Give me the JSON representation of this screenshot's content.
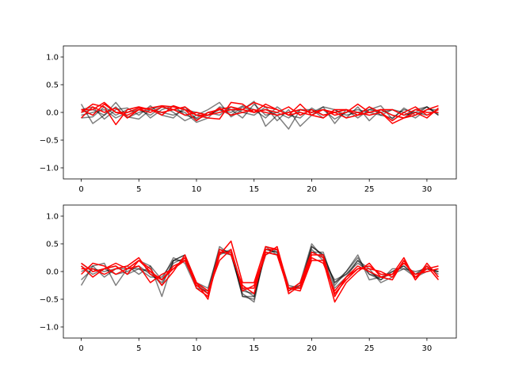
{
  "colors": {
    "gray_series": "#000000",
    "red_series": "#ff0000",
    "axes": "#000000",
    "background": "#ffffff"
  },
  "chart_data": [
    {
      "type": "line",
      "title": "",
      "xlabel": "",
      "ylabel": "",
      "xlim": [
        -1.55,
        32.55
      ],
      "ylim": [
        -1.2,
        1.2
      ],
      "xticks": [
        0,
        5,
        10,
        15,
        20,
        25,
        30
      ],
      "yticks": [
        -1.0,
        -0.5,
        0.0,
        0.5,
        1.0
      ],
      "ytick_labels": [
        "−1.0",
        "−0.5",
        "0.0",
        "0.5",
        "1.0"
      ],
      "x": [
        0,
        1,
        2,
        3,
        4,
        5,
        6,
        7,
        8,
        9,
        10,
        11,
        12,
        13,
        14,
        15,
        16,
        17,
        18,
        19,
        20,
        21,
        22,
        23,
        24,
        25,
        26,
        27,
        28,
        29,
        30,
        31
      ],
      "grid": false,
      "series": [
        {
          "color": "gray",
          "values": [
            0.15,
            -0.2,
            -0.05,
            0.18,
            -0.08,
            -0.12,
            0.05,
            0.12,
            0.0,
            -0.15,
            -0.05,
            0.05,
            0.18,
            -0.08,
            0.05,
            0.2,
            -0.25,
            -0.05,
            -0.3,
            0.05,
            0.0,
            0.1,
            -0.2,
            0.05,
            -0.1,
            0.05,
            0.12,
            -0.12,
            0.08,
            -0.05,
            0.1,
            -0.02
          ]
        },
        {
          "color": "gray",
          "values": [
            -0.1,
            -0.08,
            0.1,
            -0.05,
            0.05,
            0.1,
            -0.1,
            0.05,
            0.12,
            -0.05,
            -0.1,
            0.0,
            -0.05,
            0.1,
            0.0,
            -0.05,
            0.1,
            -0.15,
            0.05,
            -0.25,
            -0.05,
            0.1,
            0.05,
            -0.1,
            0.1,
            -0.15,
            0.05,
            -0.05,
            -0.1,
            0.05,
            0.1,
            -0.05
          ]
        },
        {
          "color": "gray",
          "values": [
            0.05,
            0.1,
            -0.12,
            0.05,
            0.08,
            -0.05,
            0.12,
            -0.05,
            -0.1,
            0.1,
            -0.12,
            -0.05,
            0.05,
            0.0,
            0.12,
            0.05,
            -0.1,
            0.1,
            -0.05,
            -0.1,
            0.08,
            -0.05,
            0.0,
            0.05,
            -0.05,
            0.1,
            -0.05,
            0.05,
            0.0,
            -0.1,
            0.05,
            0.05
          ]
        },
        {
          "color": "gray",
          "values": [
            -0.05,
            0.0,
            0.05,
            -0.1,
            0.0,
            0.05,
            -0.05,
            0.1,
            0.05,
            0.0,
            -0.18,
            -0.1,
            0.1,
            0.05,
            -0.1,
            0.15,
            -0.05,
            0.0,
            -0.1,
            0.05,
            0.0,
            0.05,
            -0.12,
            0.0,
            0.05,
            0.0,
            -0.05,
            -0.1,
            0.05,
            0.0,
            -0.05,
            0.05
          ]
        },
        {
          "color": "gray",
          "values": [
            0.0,
            0.05,
            -0.05,
            0.1,
            -0.1,
            0.0,
            0.05,
            0.0,
            -0.05,
            0.05,
            0.0,
            -0.05,
            0.05,
            -0.05,
            0.1,
            0.0,
            0.05,
            -0.05,
            0.0,
            0.05,
            0.05,
            -0.1,
            0.05,
            -0.05,
            0.0,
            0.05,
            0.0,
            0.05,
            -0.05,
            0.0,
            0.1,
            -0.05
          ]
        },
        {
          "color": "red",
          "values": [
            0.0,
            0.15,
            0.1,
            -0.22,
            0.05,
            0.1,
            0.05,
            -0.05,
            0.12,
            0.05,
            -0.05,
            -0.1,
            -0.12,
            0.18,
            0.15,
            0.0,
            0.15,
            0.05,
            -0.05,
            0.0,
            -0.05,
            0.05,
            0.0,
            -0.1,
            -0.05,
            0.1,
            0.0,
            -0.2,
            -0.1,
            -0.05,
            0.05,
            0.12
          ]
        },
        {
          "color": "red",
          "values": [
            0.05,
            0.05,
            0.18,
            0.0,
            -0.05,
            0.05,
            0.08,
            0.12,
            0.1,
            0.05,
            -0.15,
            0.0,
            0.05,
            0.1,
            0.05,
            0.18,
            0.1,
            0.05,
            -0.05,
            0.15,
            -0.05,
            -0.1,
            0.05,
            0.05,
            0.0,
            -0.05,
            0.0,
            -0.15,
            0.0,
            0.1,
            -0.05,
            0.05
          ]
        },
        {
          "color": "red",
          "values": [
            -0.1,
            0.1,
            0.0,
            0.08,
            -0.1,
            0.05,
            0.0,
            0.1,
            0.05,
            -0.05,
            0.0,
            -0.05,
            0.08,
            -0.05,
            0.0,
            0.05,
            0.0,
            -0.05,
            0.0,
            0.05,
            0.0,
            0.05,
            -0.05,
            0.0,
            0.15,
            0.0,
            0.05,
            -0.05,
            -0.1,
            0.0,
            -0.1,
            0.08
          ]
        },
        {
          "color": "red",
          "values": [
            0.05,
            -0.05,
            0.15,
            0.0,
            0.0,
            0.08,
            0.05,
            0.0,
            0.05,
            0.1,
            -0.05,
            -0.05,
            0.0,
            0.05,
            0.05,
            0.0,
            0.05,
            0.0,
            0.1,
            -0.05,
            0.05,
            -0.05,
            0.0,
            0.05,
            -0.05,
            0.0,
            0.05,
            0.05,
            -0.05,
            0.05,
            0.0,
            0.0
          ]
        }
      ]
    },
    {
      "type": "line",
      "title": "",
      "xlabel": "",
      "ylabel": "",
      "xlim": [
        -1.55,
        32.55
      ],
      "ylim": [
        -1.2,
        1.2
      ],
      "xticks": [
        0,
        5,
        10,
        15,
        20,
        25,
        30
      ],
      "yticks": [
        -1.0,
        -0.5,
        0.0,
        0.5,
        1.0
      ],
      "ytick_labels": [
        "−1.0",
        "−0.5",
        "0.0",
        "0.5",
        "1.0"
      ],
      "x": [
        0,
        1,
        2,
        3,
        4,
        5,
        6,
        7,
        8,
        9,
        10,
        11,
        12,
        13,
        14,
        15,
        16,
        17,
        18,
        19,
        20,
        21,
        22,
        23,
        24,
        25,
        26,
        27,
        28,
        29,
        30,
        31
      ],
      "grid": false,
      "series": [
        {
          "color": "gray",
          "values": [
            -0.25,
            0.1,
            0.15,
            -0.25,
            0.05,
            0.2,
            0.1,
            -0.45,
            0.2,
            0.3,
            -0.2,
            -0.3,
            0.4,
            0.35,
            -0.45,
            -0.45,
            0.35,
            0.3,
            -0.3,
            -0.25,
            0.45,
            0.3,
            -0.2,
            0.0,
            0.3,
            -0.15,
            -0.1,
            0.0,
            0.1,
            -0.1,
            0.05,
            0.0
          ]
        },
        {
          "color": "gray",
          "values": [
            0.1,
            -0.05,
            0.05,
            0.1,
            -0.05,
            0.05,
            -0.1,
            -0.1,
            0.2,
            0.2,
            -0.25,
            -0.4,
            0.35,
            0.3,
            -0.4,
            -0.55,
            0.4,
            0.35,
            -0.35,
            -0.2,
            0.5,
            0.25,
            -0.3,
            -0.1,
            0.2,
            0.05,
            -0.2,
            -0.1,
            0.15,
            -0.05,
            0.1,
            -0.05
          ]
        },
        {
          "color": "gray",
          "values": [
            0.0,
            0.1,
            -0.1,
            0.05,
            0.1,
            -0.05,
            0.1,
            -0.15,
            0.25,
            0.15,
            -0.3,
            -0.35,
            0.45,
            0.3,
            -0.35,
            -0.4,
            0.3,
            0.4,
            -0.25,
            -0.3,
            0.4,
            0.2,
            -0.15,
            -0.05,
            0.15,
            0.0,
            -0.15,
            0.05,
            0.05,
            -0.1,
            0.0,
            0.05
          ]
        },
        {
          "color": "gray",
          "values": [
            0.15,
            0.0,
            0.05,
            -0.05,
            0.0,
            0.1,
            -0.05,
            -0.2,
            0.15,
            0.25,
            -0.2,
            -0.4,
            0.3,
            0.4,
            -0.3,
            -0.45,
            0.45,
            0.3,
            -0.3,
            -0.3,
            0.35,
            0.35,
            -0.25,
            0.0,
            0.25,
            -0.05,
            -0.1,
            -0.05,
            0.05,
            0.0,
            0.05,
            0.0
          ]
        },
        {
          "color": "gray",
          "values": [
            -0.15,
            0.05,
            0.0,
            0.05,
            0.05,
            0.05,
            0.0,
            -0.25,
            0.2,
            0.3,
            -0.3,
            -0.45,
            0.35,
            0.35,
            -0.45,
            -0.5,
            0.4,
            0.35,
            -0.35,
            -0.25,
            0.45,
            0.3,
            -0.2,
            -0.05,
            0.2,
            -0.05,
            -0.15,
            0.0,
            0.1,
            -0.05,
            0.05,
            0.0
          ]
        },
        {
          "color": "red",
          "values": [
            0.15,
            0.0,
            0.05,
            0.1,
            -0.05,
            0.2,
            0.0,
            -0.15,
            0.05,
            0.25,
            -0.3,
            -0.45,
            0.3,
            0.55,
            -0.2,
            -0.2,
            0.45,
            0.4,
            -0.3,
            -0.35,
            0.2,
            0.2,
            -0.55,
            -0.2,
            0.0,
            0.15,
            -0.1,
            -0.05,
            0.25,
            -0.15,
            0.1,
            -0.15
          ]
        },
        {
          "color": "red",
          "values": [
            -0.05,
            0.15,
            0.1,
            -0.05,
            0.05,
            0.1,
            -0.2,
            -0.05,
            0.05,
            0.2,
            -0.2,
            -0.5,
            0.4,
            0.3,
            -0.25,
            -0.4,
            0.4,
            0.4,
            -0.4,
            -0.25,
            0.3,
            0.3,
            -0.45,
            -0.1,
            0.1,
            0.0,
            -0.1,
            -0.15,
            0.2,
            -0.1,
            0.05,
            0.1
          ]
        },
        {
          "color": "red",
          "values": [
            0.1,
            -0.1,
            0.05,
            0.15,
            0.05,
            0.2,
            0.05,
            -0.25,
            0.0,
            0.3,
            -0.2,
            -0.35,
            0.2,
            0.4,
            -0.35,
            -0.25,
            0.35,
            0.3,
            -0.35,
            -0.2,
            0.35,
            0.25,
            -0.4,
            -0.15,
            0.05,
            0.05,
            0.0,
            -0.1,
            0.2,
            -0.15,
            0.15,
            -0.1
          ]
        },
        {
          "color": "red",
          "values": [
            0.05,
            0.05,
            -0.05,
            0.05,
            0.1,
            0.25,
            -0.05,
            -0.15,
            0.1,
            0.2,
            -0.25,
            -0.4,
            0.35,
            0.35,
            -0.3,
            -0.3,
            0.3,
            0.45,
            -0.3,
            -0.3,
            0.25,
            0.15,
            -0.35,
            -0.1,
            0.05,
            0.1,
            -0.05,
            -0.05,
            0.15,
            -0.05,
            0.0,
            0.05
          ]
        }
      ]
    }
  ]
}
